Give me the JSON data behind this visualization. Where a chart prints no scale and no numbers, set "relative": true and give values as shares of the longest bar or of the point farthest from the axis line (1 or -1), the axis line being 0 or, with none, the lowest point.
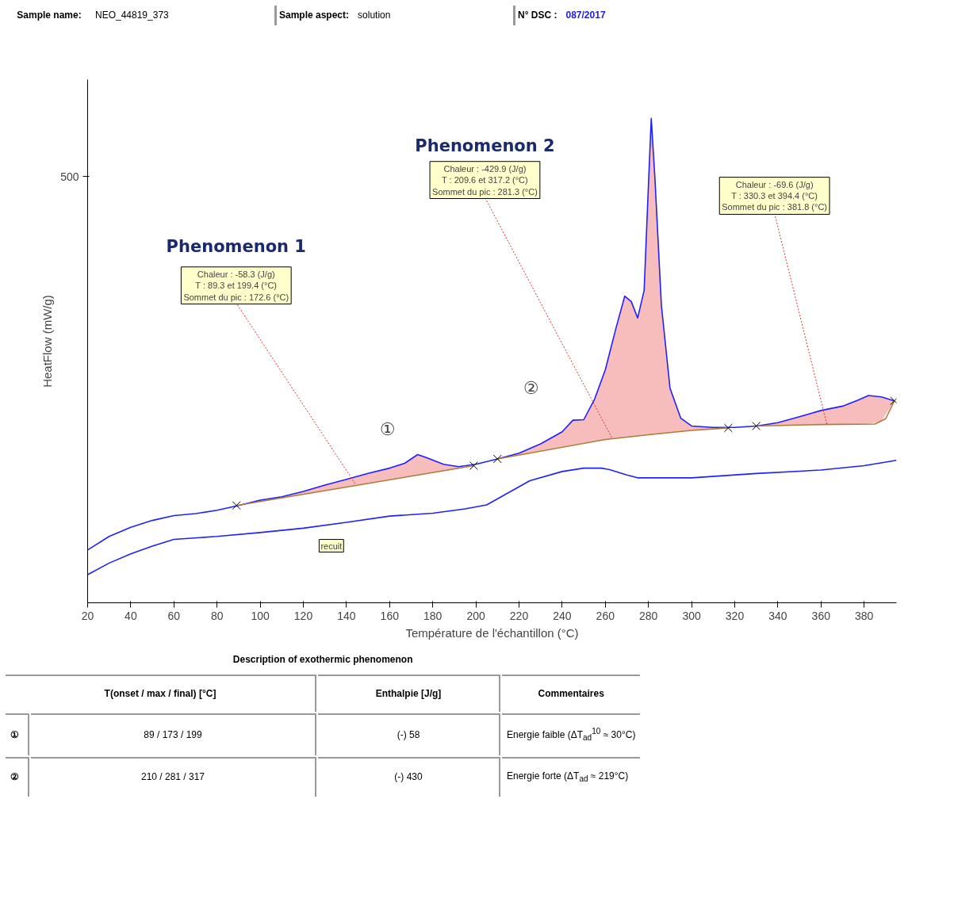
{
  "chart_data": {
    "type": "line",
    "relative": true,
    "grid": false,
    "xlabel": "Température de l'échantillon (°C)",
    "ylabel": "HeatFlow (mW/g)",
    "xlim": [
      20,
      395
    ],
    "xticks": [
      20,
      40,
      60,
      80,
      100,
      120,
      140,
      160,
      180,
      200,
      220,
      240,
      260,
      280,
      300,
      320,
      340,
      360,
      380
    ],
    "series": [
      {
        "color": "#2020ff",
        "x": [
          20,
          30,
          40,
          50,
          60,
          70,
          80,
          90,
          100,
          110,
          120,
          130,
          140,
          150,
          160,
          167,
          173,
          177,
          185,
          192,
          200,
          210,
          220,
          230,
          240,
          245,
          250,
          255,
          260,
          265,
          269,
          272,
          275,
          278,
          280,
          281.3,
          283,
          286,
          290,
          295,
          300,
          310,
          320,
          330,
          340,
          350,
          360,
          370,
          377,
          382,
          388,
          394
        ],
        "lower": [
          null,
          null,
          null,
          null,
          null,
          null,
          null,
          0.202,
          0.209,
          0.217,
          0.224,
          0.232,
          0.239,
          0.246,
          0.254,
          0.259,
          0.263,
          0.266,
          0.272,
          0.277,
          null,
          0.297,
          0.306,
          0.314,
          0.322,
          0.326,
          0.33,
          0.334,
          0.337,
          0.339,
          0.341,
          0.342,
          0.344,
          0.346,
          0.347,
          0.347,
          0.348,
          0.349,
          0.351,
          0.354,
          0.356,
          0.359,
          null,
          0.365,
          0.366,
          0.367,
          0.368,
          0.368,
          0.369,
          0.369,
          0.375,
          0.417
        ],
        "upper": [
          null,
          null,
          null,
          null,
          null,
          null,
          null,
          0.201,
          0.212,
          0.219,
          0.23,
          0.243,
          0.255,
          0.267,
          0.278,
          0.288,
          0.306,
          0.3,
          0.286,
          0.281,
          null,
          0.297,
          0.309,
          0.328,
          0.353,
          0.377,
          0.378,
          0.42,
          0.481,
          0.568,
          0.633,
          0.622,
          0.588,
          0.645,
          0.863,
          1.0,
          0.877,
          0.614,
          0.443,
          0.381,
          0.365,
          0.362,
          null,
          0.365,
          0.372,
          0.384,
          0.397,
          0.406,
          0.418,
          0.428,
          0.425,
          0.417
        ],
        "values": [
          0.109,
          0.137,
          0.156,
          0.17,
          0.18,
          0.184,
          0.191,
          0.201,
          0.212,
          0.219,
          0.23,
          0.243,
          0.255,
          0.267,
          0.278,
          0.288,
          0.306,
          0.3,
          0.286,
          0.281,
          0.286,
          0.297,
          0.309,
          0.328,
          0.353,
          0.377,
          0.378,
          0.42,
          0.481,
          0.568,
          0.633,
          0.622,
          0.588,
          0.645,
          0.863,
          1.0,
          0.877,
          0.614,
          0.443,
          0.381,
          0.365,
          0.362,
          0.362,
          0.365,
          0.372,
          0.384,
          0.397,
          0.406,
          0.418,
          0.428,
          0.425,
          0.417
        ]
      },
      {
        "color": "#b07a3a",
        "x": [
          89,
          199,
          205,
          210,
          260,
          280,
          300,
          317,
          324,
          330,
          360,
          385,
          390,
          394
        ],
        "values": [
          0.201,
          0.283,
          null,
          0.297,
          0.337,
          0.347,
          0.356,
          0.361,
          null,
          0.365,
          0.368,
          0.369,
          0.38,
          0.417
        ]
      },
      {
        "color": "#2020ff",
        "x": [
          20,
          30,
          40,
          50,
          60,
          80,
          100,
          120,
          140,
          160,
          180,
          195,
          205,
          215,
          225,
          240,
          250,
          258,
          262,
          270,
          275,
          300,
          330,
          360,
          380,
          395
        ],
        "values": [
          0.058,
          0.082,
          0.101,
          0.117,
          0.131,
          0.137,
          0.145,
          0.154,
          0.166,
          0.179,
          0.185,
          0.194,
          0.202,
          0.227,
          0.252,
          0.271,
          0.278,
          0.278,
          0.275,
          0.264,
          0.258,
          0.258,
          0.267,
          0.274,
          0.283,
          0.294
        ]
      },
      {
        "type": "scatter",
        "marker": "cross",
        "color": "#000000",
        "x": [
          89,
          199,
          210,
          317,
          330,
          394
        ],
        "values": [
          0.201,
          0.283,
          0.297,
          0.361,
          0.365,
          0.417
        ]
      }
    ],
    "annotations": [
      "Sample name:",
      "NEO_44819_373",
      "Sample aspect:",
      "solution",
      "N° DSC :",
      "087/2017",
      "500",
      "Phenomenon 1",
      "Phenomenon 2",
      {
        "text": "Chaleur : -58.3 (J/g)\nT : 89.3 et 199.4 (°C)\nSommet du pic : 172.6 (°C)",
        "x": 144,
        "y": 0.246
      },
      {
        "text": "Chaleur : -429.9 (J/g)\nT : 209.6 et 317.2 (°C)\nSommet du pic : 281.3 (°C)",
        "x": 263,
        "y": 0.341
      },
      {
        "text": "Chaleur : -69.6 (J/g)\nT : 330.3 et 394.4 (°C)\nSommet du pic : 381.8 (°C)",
        "x": 362.7,
        "y": 0.369
      },
      "①",
      "②",
      {
        "text": "recuit",
        "x": 133,
        "y": 0.157
      },
      "Description of exothermic phenomenon",
      "T(onset / max / final) [°C]",
      "Enthalpie [J/g]",
      "Commentaires",
      "①",
      "89 / 173 / 199",
      "(-) 58",
      "Energie faible (ΔT$_{ad}$$^{10}$ ≈ 30°C)",
      "②",
      "210 / 281 / 317",
      "(-) 430",
      "Energie forte (ΔT$_{ad}$ ≈ 219°C)"
    ]
  }
}
